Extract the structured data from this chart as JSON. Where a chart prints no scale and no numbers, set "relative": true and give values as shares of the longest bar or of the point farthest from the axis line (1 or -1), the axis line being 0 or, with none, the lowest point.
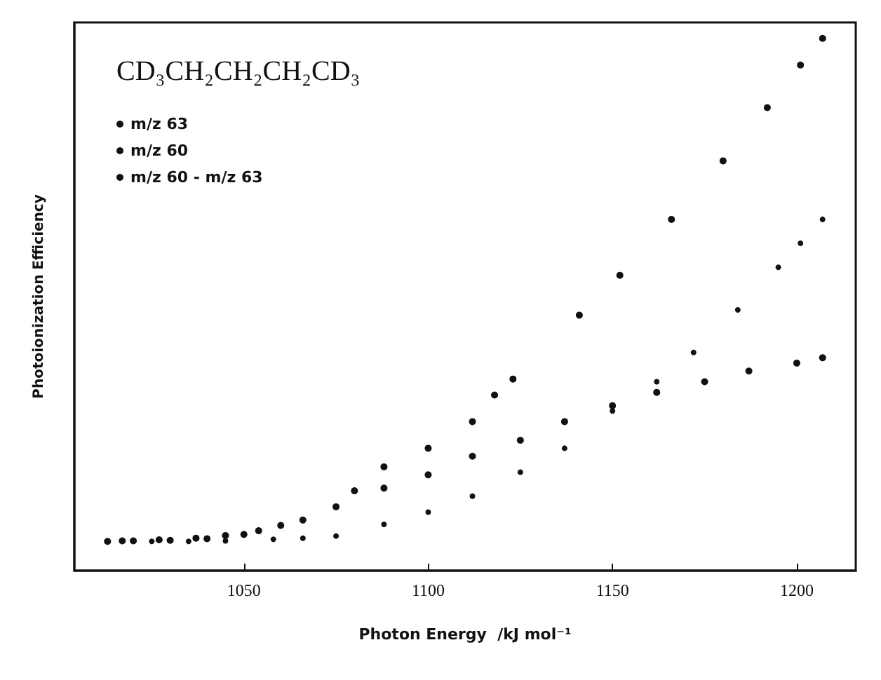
{
  "chart_data": {
    "type": "scatter",
    "title": "CD₃CH₂CH₂CH₂CD₃",
    "xlabel": "Photon Energy  /kJ mol⁻¹",
    "ylabel": "Photoionization Efficiency",
    "relative": true,
    "xlim": [
      1004,
      1216
    ],
    "xticks": [
      1050,
      1100,
      1150,
      1200
    ],
    "grid": false,
    "legend": "top left",
    "marker": "circle",
    "series": [
      {
        "name": "m/z 63",
        "color": "#111111",
        "x": [
          1013,
          1020,
          1030,
          1040,
          1050,
          1060,
          1075,
          1088,
          1100,
          1112,
          1125,
          1137,
          1150,
          1162,
          1175,
          1187,
          1200,
          1207
        ],
        "values": [
          0.055,
          0.056,
          0.057,
          0.06,
          0.068,
          0.085,
          0.12,
          0.155,
          0.18,
          0.215,
          0.245,
          0.28,
          0.31,
          0.335,
          0.355,
          0.375,
          0.39,
          0.4
        ]
      },
      {
        "name": "m/z 60",
        "color": "#111111",
        "x": [
          1017,
          1027,
          1037,
          1045,
          1054,
          1066,
          1080,
          1088,
          1100,
          1112,
          1118,
          1123,
          1141,
          1152,
          1166,
          1180,
          1192,
          1201,
          1207
        ],
        "values": [
          0.056,
          0.058,
          0.061,
          0.066,
          0.075,
          0.095,
          0.15,
          0.195,
          0.23,
          0.28,
          0.33,
          0.36,
          0.48,
          0.555,
          0.66,
          0.77,
          0.87,
          0.95,
          1.0
        ]
      },
      {
        "name": "m/z 60 - m/z 63",
        "color": "#111111",
        "x": [
          1025,
          1035,
          1045,
          1058,
          1066,
          1075,
          1088,
          1100,
          1112,
          1125,
          1137,
          1150,
          1162,
          1172,
          1184,
          1195,
          1201,
          1207
        ],
        "values": [
          0.055,
          0.055,
          0.056,
          0.059,
          0.061,
          0.065,
          0.087,
          0.11,
          0.14,
          0.185,
          0.23,
          0.3,
          0.355,
          0.41,
          0.49,
          0.57,
          0.615,
          0.66
        ]
      }
    ]
  }
}
